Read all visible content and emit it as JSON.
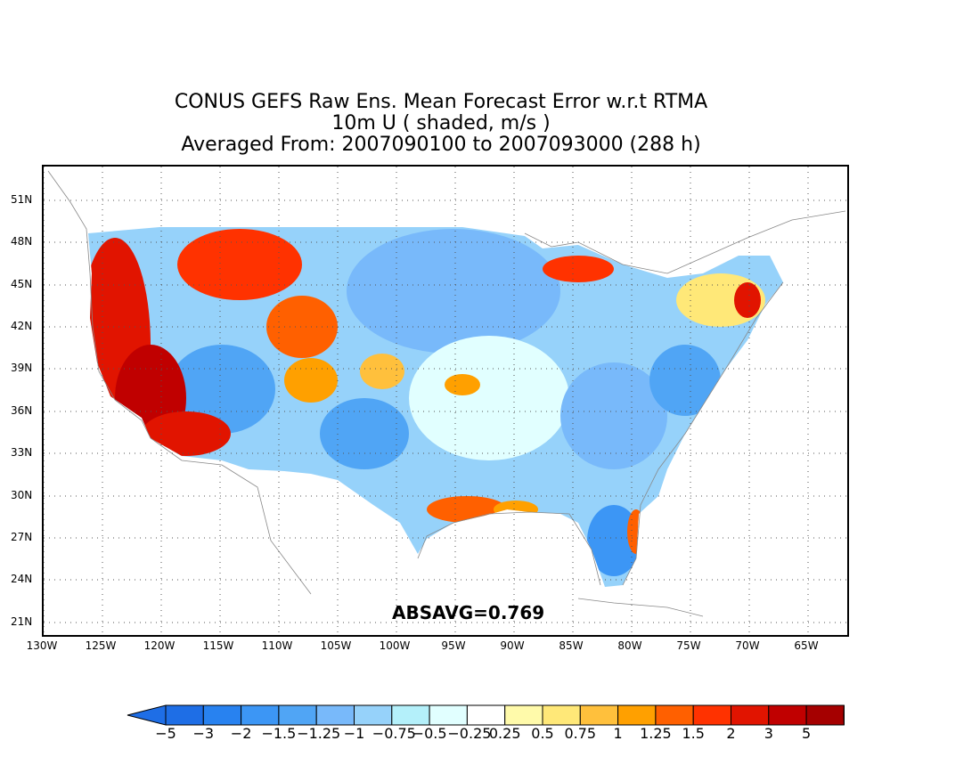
{
  "title": {
    "line1": "CONUS GEFS Raw Ens. Mean Forecast Error w.r.t RTMA",
    "line2": "10m U ( shaded, m/s )",
    "line3": "Averaged From: 2007090100 to 2007093000 (288 h)"
  },
  "stat_label": "ABSAVG=0.769",
  "axes": {
    "lat_labels": [
      "51N",
      "48N",
      "45N",
      "42N",
      "39N",
      "36N",
      "33N",
      "30N",
      "27N",
      "24N",
      "21N"
    ],
    "lon_labels": [
      "130W",
      "125W",
      "120W",
      "115W",
      "110W",
      "105W",
      "100W",
      "95W",
      "90W",
      "85W",
      "80W",
      "75W",
      "70W",
      "65W"
    ]
  },
  "colorbar": {
    "labels": [
      "−5",
      "−3",
      "−2",
      "−1.5",
      "−1.25",
      "−1",
      "−0.75",
      "−0.5",
      "−0.25",
      "0.25",
      "0.5",
      "0.75",
      "1",
      "1.25",
      "1.5",
      "2",
      "3",
      "5"
    ],
    "colors": [
      "#1e6ee6",
      "#2882f0",
      "#3c96f5",
      "#50a5f5",
      "#78b9fa",
      "#96d2fa",
      "#b4f0fa",
      "#e1ffff",
      "#ffffff",
      "#fffaaa",
      "#ffe878",
      "#ffc03c",
      "#ffa000",
      "#ff6000",
      "#ff3200",
      "#e11400",
      "#c00000",
      "#a50000"
    ],
    "left_arrow_color": "#1e6ee6",
    "right_arrow_color": "#a50000"
  },
  "colors": {
    "strong_positive": "#e11400",
    "positive": "#ff6000",
    "weak_positive": "#ffc03c",
    "negative": "#50a5f5",
    "weak_negative": "#96d2fa",
    "near_zero": "#e1ffff",
    "coastline": "#888888",
    "grid": "#555555"
  }
}
